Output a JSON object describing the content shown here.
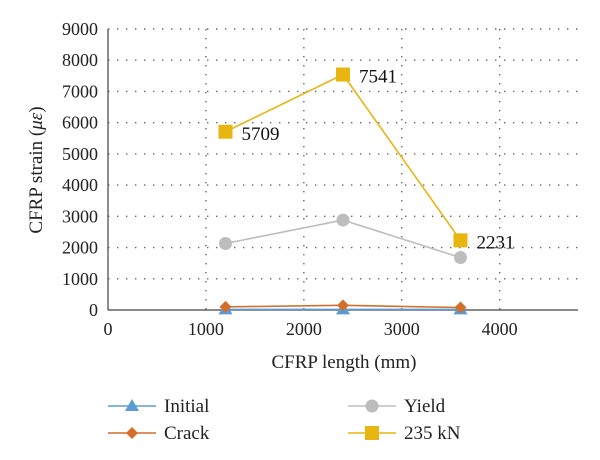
{
  "chart_data": {
    "type": "line",
    "title": "",
    "xlabel": "CFRP length (mm)",
    "ylabel_prefix": "CFRP strain (",
    "ylabel_mu": "με",
    "ylabel_suffix": ")",
    "xlim": [
      0,
      4800
    ],
    "ylim": [
      0,
      9000
    ],
    "x_ticks": [
      0,
      1000,
      2000,
      3000,
      4000
    ],
    "y_ticks": [
      0,
      1000,
      2000,
      3000,
      4000,
      5000,
      6000,
      7000,
      8000,
      9000
    ],
    "grid": true,
    "legend_position": "bottom",
    "x": [
      1200,
      2400,
      3600
    ],
    "series": [
      {
        "name": "Initial",
        "values": [
          20,
          20,
          20
        ],
        "color": "#5B9BD5",
        "marker": "triangle"
      },
      {
        "name": "Crack",
        "values": [
          100,
          150,
          80
        ],
        "color": "#D46F2B",
        "marker": "diamond"
      },
      {
        "name": "Yield",
        "values": [
          2130,
          2880,
          1680
        ],
        "color": "#BDBDBD",
        "marker": "circle"
      },
      {
        "name": "235 kN",
        "values": [
          5709,
          7541,
          2231
        ],
        "color": "#E8B511",
        "marker": "square"
      }
    ],
    "data_labels": [
      {
        "series": "235 kN",
        "x": 1200,
        "y": 5709,
        "text": "5709"
      },
      {
        "series": "235 kN",
        "x": 2400,
        "y": 7541,
        "text": "7541"
      },
      {
        "series": "235 kN",
        "x": 3600,
        "y": 2231,
        "text": "2231"
      }
    ]
  }
}
